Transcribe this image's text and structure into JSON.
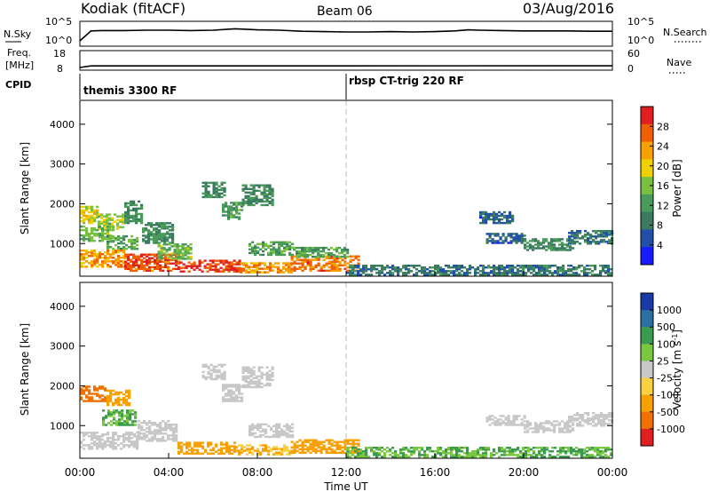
{
  "header": {
    "station": "Kodiak (fitACF)",
    "beam": "Beam 06",
    "date": "03/Aug/2016"
  },
  "colors": {
    "power_scale": [
      "#1a1aff",
      "#2050a8",
      "#3a7a60",
      "#4a9a5a",
      "#7ac040",
      "#f0d000",
      "#f8a000",
      "#f06000",
      "#e02020"
    ],
    "velocity_scale": [
      "#1a3aa8",
      "#2a70a0",
      "#3a9a50",
      "#7ac840",
      "#c8c8c8",
      "#f8d040",
      "#f8a000",
      "#f07000",
      "#e02020"
    ]
  },
  "chart_data": [
    {
      "name": "noise_panel",
      "type": "line",
      "left_label": "N.Sky",
      "left_ticks": [
        "10^5",
        "10^0"
      ],
      "right_label": "N.Search",
      "right_ticks": [
        "10^5",
        "10^0"
      ],
      "x": [
        0,
        0.5,
        1,
        2,
        3,
        4,
        5,
        6,
        7,
        8,
        9,
        10,
        11,
        12,
        13,
        14,
        15,
        16,
        16.9,
        17.5,
        18,
        19,
        20,
        21,
        22,
        23,
        24
      ],
      "y_log": [
        0.5,
        3.3,
        3.4,
        3.4,
        3.5,
        3.5,
        3.4,
        3.5,
        3.9,
        3.6,
        3.5,
        3.2,
        3.1,
        3.0,
        3.0,
        3.1,
        3.0,
        3.1,
        3.3,
        3.6,
        3.5,
        3.4,
        3.3,
        3.3,
        3.3,
        3.2,
        3.2
      ],
      "ylim_log": [
        0,
        5
      ]
    },
    {
      "name": "frequency_panel",
      "type": "line",
      "left_label": "Freq.",
      "left_unit": "[MHz]",
      "left_ticks": [
        "18",
        "8"
      ],
      "right_label": "Nave",
      "right_ticks": [
        "60",
        "0"
      ],
      "x": [
        0,
        0.5,
        24
      ],
      "frequency": [
        8,
        9.1,
        9.2
      ],
      "nave": [
        0,
        0,
        0
      ]
    },
    {
      "name": "cpid_panel",
      "type": "table",
      "label": "CPID",
      "segments": [
        {
          "start": 0,
          "end": 12,
          "text": "themis 3300 RF"
        },
        {
          "start": 12,
          "end": 24,
          "text": "rbsp CT-trig 220 RF"
        }
      ]
    },
    {
      "name": "power_panel",
      "type": "heatmap",
      "ylabel": "Slant Range [km]",
      "yticks": [
        1000,
        2000,
        3000,
        4000
      ],
      "ylim": [
        180,
        4600
      ],
      "colorbar_label": "Power [dB]",
      "colorbar_ticks": [
        "4",
        "8",
        "12",
        "16",
        "20",
        "24",
        "28"
      ],
      "clim": [
        0,
        30
      ],
      "regions": [
        {
          "t0": 0.0,
          "t1": 0.8,
          "r0": 1500,
          "r1": 1950,
          "v": 18
        },
        {
          "t0": 0.8,
          "t1": 2.0,
          "r0": 1350,
          "r1": 1750,
          "v": 16
        },
        {
          "t0": 2.0,
          "t1": 2.8,
          "r0": 1500,
          "r1": 2050,
          "v": 10
        },
        {
          "t0": 0.0,
          "t1": 1.5,
          "r0": 1050,
          "r1": 1450,
          "v": 14
        },
        {
          "t0": 1.2,
          "t1": 2.6,
          "r0": 850,
          "r1": 1200,
          "v": 12
        },
        {
          "t0": 0.0,
          "t1": 2.0,
          "r0": 400,
          "r1": 850,
          "v": 22
        },
        {
          "t0": 2.0,
          "t1": 4.5,
          "r0": 300,
          "r1": 750,
          "v": 26
        },
        {
          "t0": 4.5,
          "t1": 7.2,
          "r0": 280,
          "r1": 560,
          "v": 27
        },
        {
          "t0": 7.2,
          "t1": 9.5,
          "r0": 260,
          "r1": 520,
          "v": 22
        },
        {
          "t0": 9.5,
          "t1": 12.5,
          "r0": 300,
          "r1": 700,
          "v": 24
        },
        {
          "t0": 2.8,
          "t1": 4.2,
          "r0": 1000,
          "r1": 1500,
          "v": 10
        },
        {
          "t0": 3.5,
          "t1": 5.0,
          "r0": 600,
          "r1": 1000,
          "v": 14
        },
        {
          "t0": 5.5,
          "t1": 6.5,
          "r0": 2150,
          "r1": 2550,
          "v": 10
        },
        {
          "t0": 6.4,
          "t1": 7.3,
          "r0": 1600,
          "r1": 2050,
          "v": 12
        },
        {
          "t0": 7.3,
          "t1": 8.7,
          "r0": 1950,
          "r1": 2450,
          "v": 10
        },
        {
          "t0": 7.6,
          "t1": 9.6,
          "r0": 700,
          "r1": 1050,
          "v": 12
        },
        {
          "t0": 9.6,
          "t1": 12.0,
          "r0": 650,
          "r1": 900,
          "v": 12
        },
        {
          "t0": 12.0,
          "t1": 24.0,
          "r0": 200,
          "r1": 460,
          "v": 8
        },
        {
          "t0": 18.3,
          "t1": 20.0,
          "r0": 1000,
          "r1": 1250,
          "v": 6
        },
        {
          "t0": 20.0,
          "t1": 22.2,
          "r0": 820,
          "r1": 1100,
          "v": 10
        },
        {
          "t0": 22.0,
          "t1": 24.0,
          "r0": 980,
          "r1": 1300,
          "v": 8
        },
        {
          "t0": 18.0,
          "t1": 19.5,
          "r0": 1500,
          "r1": 1800,
          "v": 6
        }
      ]
    },
    {
      "name": "velocity_panel",
      "type": "heatmap",
      "ylabel": "Slant Range [km]",
      "yticks": [
        1000,
        2000,
        3000,
        4000
      ],
      "ylim": [
        180,
        4600
      ],
      "colorbar_label": "Velocity [m s^-1]",
      "colorbar_ticks": [
        "1000",
        "500",
        "100",
        "25",
        "-25",
        "-100",
        "-500",
        "-1000"
      ],
      "regions": [
        {
          "t0": 0.0,
          "t1": 1.2,
          "r0": 1600,
          "r1": 2000,
          "v": -500
        },
        {
          "t0": 1.2,
          "t1": 2.2,
          "r0": 1500,
          "r1": 1900,
          "v": -100
        },
        {
          "t0": 0.0,
          "t1": 2.6,
          "r0": 400,
          "r1": 850,
          "v": 0
        },
        {
          "t0": 2.6,
          "t1": 4.4,
          "r0": 600,
          "r1": 1100,
          "v": 0
        },
        {
          "t0": 1.0,
          "t1": 2.5,
          "r0": 1000,
          "r1": 1400,
          "v": 60
        },
        {
          "t0": 4.4,
          "t1": 7.0,
          "r0": 280,
          "r1": 560,
          "v": -80
        },
        {
          "t0": 7.0,
          "t1": 9.5,
          "r0": 260,
          "r1": 520,
          "v": -60
        },
        {
          "t0": 9.5,
          "t1": 12.5,
          "r0": 300,
          "r1": 650,
          "v": -100
        },
        {
          "t0": 5.5,
          "t1": 6.5,
          "r0": 2150,
          "r1": 2550,
          "v": 0
        },
        {
          "t0": 6.4,
          "t1": 7.3,
          "r0": 1600,
          "r1": 2050,
          "v": 0
        },
        {
          "t0": 7.3,
          "t1": 8.7,
          "r0": 1950,
          "r1": 2450,
          "v": 0
        },
        {
          "t0": 7.6,
          "t1": 9.6,
          "r0": 700,
          "r1": 1050,
          "v": 0
        },
        {
          "t0": 12.0,
          "t1": 24.0,
          "r0": 200,
          "r1": 460,
          "v": 60
        },
        {
          "t0": 18.3,
          "t1": 20.0,
          "r0": 1000,
          "r1": 1250,
          "v": 0
        },
        {
          "t0": 20.0,
          "t1": 22.2,
          "r0": 820,
          "r1": 1100,
          "v": 0
        },
        {
          "t0": 22.0,
          "t1": 24.0,
          "r0": 980,
          "r1": 1300,
          "v": 0
        }
      ]
    }
  ],
  "x_axis": {
    "ticks": [
      "00:00",
      "04:00",
      "08:00",
      "12:00",
      "16:00",
      "20:00",
      "00:00"
    ],
    "label": "Time UT",
    "range_hours": [
      0,
      24
    ]
  }
}
